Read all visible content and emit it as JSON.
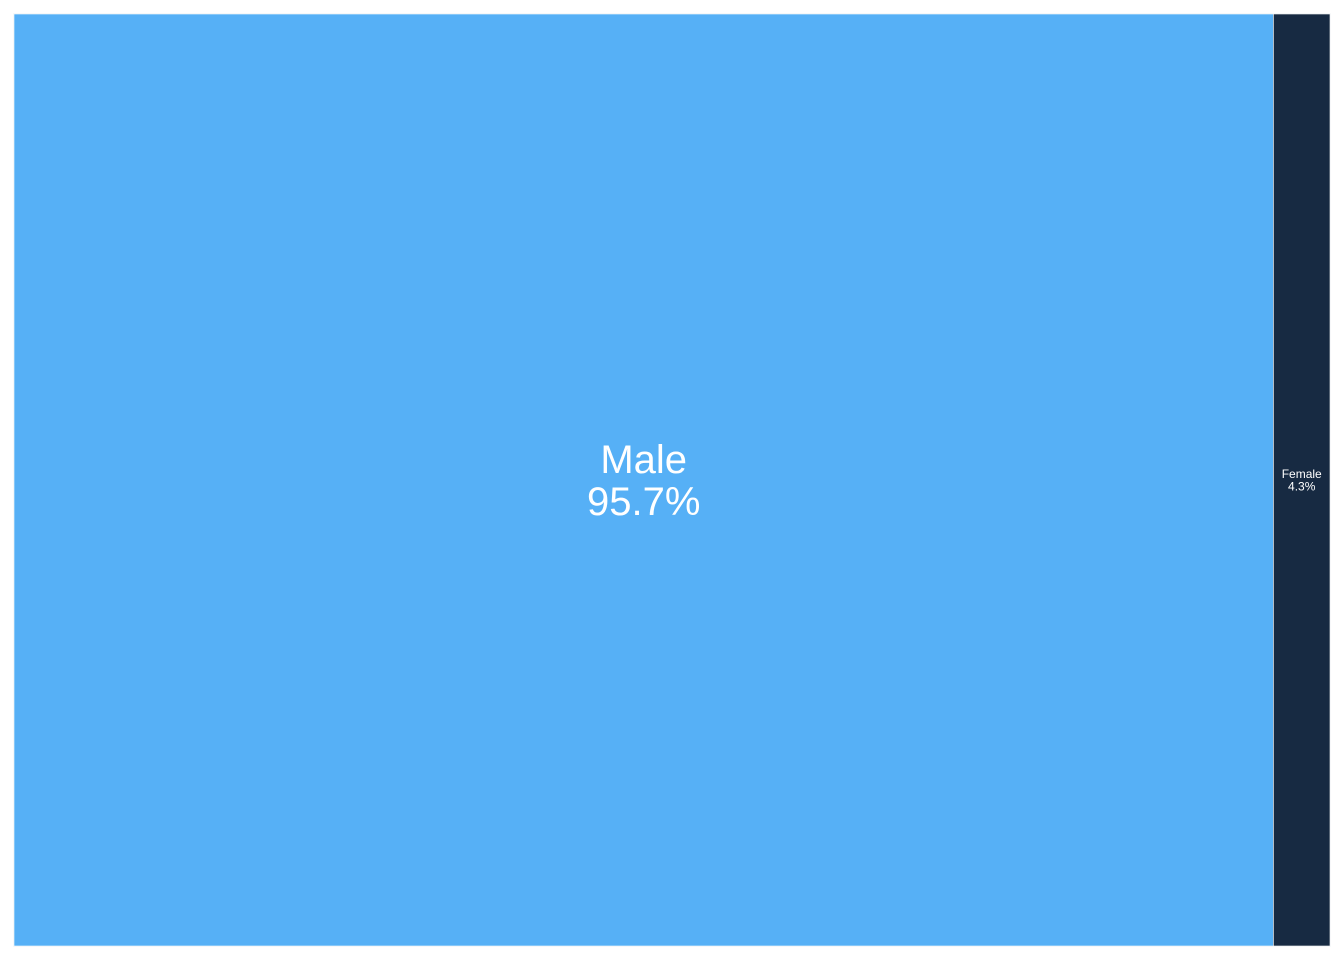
{
  "chart_data": {
    "type": "treemap",
    "categories": [
      "Male",
      "Female"
    ],
    "values": [
      95.7,
      4.3
    ],
    "labels": [
      "95.7%",
      "4.3%"
    ],
    "colors": [
      "#56b0f6",
      "#172a42"
    ]
  }
}
